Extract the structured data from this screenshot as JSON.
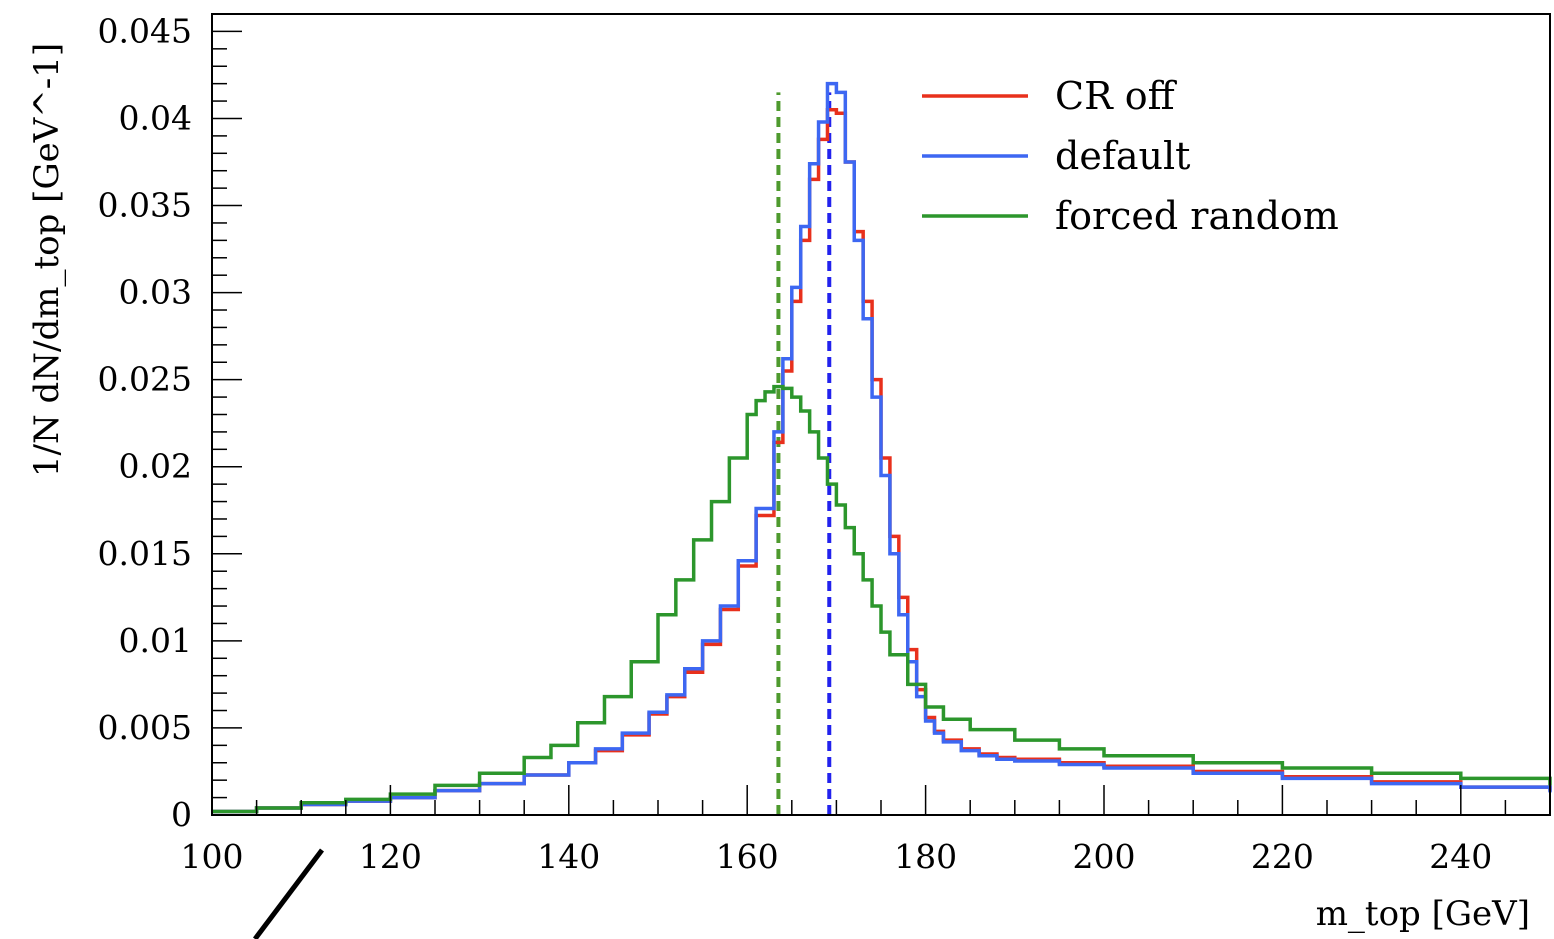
{
  "chart_data": {
    "type": "line",
    "title": "",
    "xlabel": "m_top [GeV]",
    "ylabel": "1/N dN/dm_top [GeV^-1]",
    "xlim": [
      100,
      250
    ],
    "ylim": [
      0,
      0.046
    ],
    "x_ticks": [
      "100",
      "120",
      "140",
      "160",
      "180",
      "200",
      "220",
      "240"
    ],
    "y_ticks": [
      "0",
      "0.005",
      "0.01",
      "0.015",
      "0.02",
      "0.025",
      "0.03",
      "0.035",
      "0.04",
      "0.045"
    ],
    "legend_position": "top-right",
    "series": [
      {
        "name": "CR off",
        "color": "#e8301c",
        "x": [
          100,
          105,
          110,
          115,
          120,
          125,
          130,
          135,
          140,
          143,
          146,
          149,
          151,
          153,
          155,
          157,
          159,
          161,
          163,
          164,
          165,
          166,
          167,
          168,
          169,
          170,
          171,
          172,
          173,
          174,
          175,
          176,
          177,
          178,
          179,
          180,
          181,
          182,
          184,
          186,
          188,
          190,
          195,
          200,
          210,
          220,
          230,
          240,
          250
        ],
        "y": [
          0.0002,
          0.0004,
          0.0006,
          0.0008,
          0.001,
          0.0014,
          0.0018,
          0.0023,
          0.003,
          0.0037,
          0.0046,
          0.0058,
          0.0068,
          0.0082,
          0.0098,
          0.0118,
          0.0143,
          0.0172,
          0.0214,
          0.0255,
          0.0295,
          0.033,
          0.0365,
          0.0388,
          0.0405,
          0.0403,
          0.0375,
          0.0335,
          0.0295,
          0.025,
          0.0205,
          0.016,
          0.0125,
          0.0095,
          0.0072,
          0.0056,
          0.0048,
          0.0043,
          0.0038,
          0.0035,
          0.0033,
          0.0032,
          0.003,
          0.0028,
          0.0025,
          0.0022,
          0.0019,
          0.0016,
          0.0014
        ]
      },
      {
        "name": "default",
        "color": "#3d67f2",
        "x": [
          100,
          105,
          110,
          115,
          120,
          125,
          130,
          135,
          140,
          143,
          146,
          149,
          151,
          153,
          155,
          157,
          159,
          161,
          163,
          164,
          165,
          166,
          167,
          168,
          169,
          170,
          171,
          172,
          173,
          174,
          175,
          176,
          177,
          178,
          179,
          180,
          181,
          182,
          184,
          186,
          188,
          190,
          195,
          200,
          210,
          220,
          230,
          240,
          250
        ],
        "y": [
          0.0002,
          0.0004,
          0.0006,
          0.0008,
          0.001,
          0.0014,
          0.0018,
          0.0023,
          0.003,
          0.0038,
          0.0047,
          0.0059,
          0.0069,
          0.0084,
          0.01,
          0.012,
          0.0146,
          0.0176,
          0.022,
          0.0262,
          0.0303,
          0.0338,
          0.0374,
          0.0398,
          0.042,
          0.0415,
          0.0375,
          0.033,
          0.0285,
          0.024,
          0.0195,
          0.015,
          0.0115,
          0.0088,
          0.0068,
          0.0054,
          0.0047,
          0.0042,
          0.0037,
          0.0034,
          0.0032,
          0.0031,
          0.0029,
          0.0027,
          0.0024,
          0.0021,
          0.0018,
          0.0016,
          0.0013
        ]
      },
      {
        "name": "forced random",
        "color": "#2c962c",
        "x": [
          100,
          105,
          110,
          115,
          120,
          125,
          130,
          135,
          138,
          141,
          144,
          147,
          150,
          152,
          154,
          156,
          158,
          160,
          161,
          162,
          163,
          164,
          165,
          166,
          167,
          168,
          169,
          170,
          171,
          172,
          173,
          174,
          175,
          176,
          178,
          180,
          182,
          185,
          190,
          195,
          200,
          210,
          220,
          230,
          240,
          250
        ],
        "y": [
          0.0002,
          0.0004,
          0.0007,
          0.0009,
          0.0012,
          0.0017,
          0.0024,
          0.0033,
          0.004,
          0.0053,
          0.0068,
          0.0088,
          0.0115,
          0.0135,
          0.0158,
          0.018,
          0.0205,
          0.023,
          0.0238,
          0.0243,
          0.0246,
          0.0245,
          0.024,
          0.0232,
          0.022,
          0.0205,
          0.019,
          0.0178,
          0.0165,
          0.015,
          0.0135,
          0.012,
          0.0105,
          0.0092,
          0.0075,
          0.0062,
          0.0055,
          0.0049,
          0.0043,
          0.0038,
          0.0034,
          0.003,
          0.0027,
          0.0024,
          0.0021,
          0.0017
        ]
      }
    ],
    "reference_lines": [
      {
        "x": 163.5,
        "color": "#4e9a2e"
      },
      {
        "x": 169.2,
        "color": "#2222ee"
      }
    ]
  }
}
